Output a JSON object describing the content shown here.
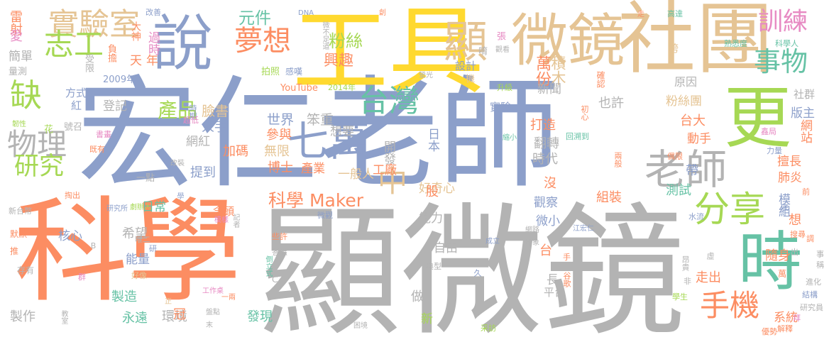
{
  "palette": {
    "blue": "#8c9fca",
    "gray": "#b3b3b3",
    "orange": "#fc8d62",
    "yellow": "#ffd92f",
    "tan": "#e5c494",
    "green": "#a6d854",
    "teal": "#66c2a5",
    "pink": "#e78ac3"
  },
  "words": [
    {
      "text": "宏仁老師",
      "color": "blue"
    },
    {
      "text": "顯微鏡",
      "color": "gray"
    },
    {
      "text": "科學",
      "color": "orange"
    },
    {
      "text": "工具",
      "color": "yellow"
    },
    {
      "text": "社團",
      "color": "tan"
    },
    {
      "text": "更",
      "color": "green"
    },
    {
      "text": "時",
      "color": "teal"
    },
    {
      "text": "說",
      "color": "blue"
    },
    {
      "text": "微鏡",
      "color": "tan"
    },
    {
      "text": "顯",
      "color": "tan"
    },
    {
      "text": "實驗室",
      "color": "tan"
    },
    {
      "text": "志工",
      "color": "green"
    },
    {
      "text": "夢想",
      "color": "orange"
    },
    {
      "text": "七萬",
      "color": "blue"
    },
    {
      "text": "台灣",
      "color": "teal"
    },
    {
      "text": "老師",
      "color": "gray"
    },
    {
      "text": "分享",
      "color": "green"
    },
    {
      "text": "物理",
      "color": "gray"
    },
    {
      "text": "缺",
      "color": "green"
    },
    {
      "text": "研究",
      "color": "green"
    },
    {
      "text": "手機",
      "color": "orange"
    },
    {
      "text": "事物",
      "color": "teal"
    },
    {
      "text": "訓練",
      "color": "pink"
    },
    {
      "text": "中",
      "color": "tan"
    },
    {
      "text": "科學 Maker",
      "color": "orange"
    },
    {
      "text": "萬份",
      "color": "orange"
    },
    {
      "text": "積木",
      "color": "tan"
    },
    {
      "text": "粉絲",
      "color": "green"
    },
    {
      "text": "興趣",
      "color": "orange"
    },
    {
      "text": "元件",
      "color": "teal"
    },
    {
      "text": "雷射",
      "color": "orange"
    },
    {
      "text": "愛",
      "color": "pink"
    },
    {
      "text": "簡單",
      "color": "gray"
    },
    {
      "text": "量測",
      "color": "gray"
    },
    {
      "text": "大神",
      "color": "orange"
    },
    {
      "text": "過時",
      "color": "pink"
    },
    {
      "text": "天",
      "color": "orange"
    },
    {
      "text": "年",
      "color": "orange"
    },
    {
      "text": "負擔",
      "color": "orange"
    },
    {
      "text": "受限",
      "color": "gray"
    },
    {
      "text": "產品",
      "color": "green"
    },
    {
      "text": "臉書",
      "color": "tan"
    },
    {
      "text": "人手",
      "color": "blue"
    },
    {
      "text": "世界",
      "color": "blue"
    },
    {
      "text": "笨重",
      "color": "gray"
    },
    {
      "text": "想要",
      "color": "gray"
    },
    {
      "text": "參與",
      "color": "orange"
    },
    {
      "text": "網紅",
      "color": "gray"
    },
    {
      "text": "加碼",
      "color": "orange"
    },
    {
      "text": "無限",
      "color": "tan"
    },
    {
      "text": "博士",
      "color": "orange"
    },
    {
      "text": "提到",
      "color": "blue"
    },
    {
      "text": "開發",
      "color": "gray"
    },
    {
      "text": "工廠",
      "color": "orange"
    },
    {
      "text": "日本",
      "color": "blue"
    },
    {
      "text": "產業",
      "color": "orange"
    },
    {
      "text": "一般人",
      "color": "tan"
    },
    {
      "text": "好奇心",
      "color": "tan"
    },
    {
      "text": "實驗",
      "color": "blue"
    },
    {
      "text": "打造",
      "color": "orange"
    },
    {
      "text": "翻轉",
      "color": "gray"
    },
    {
      "text": "時代",
      "color": "gray"
    },
    {
      "text": "新聞",
      "color": "gray"
    },
    {
      "text": "也許",
      "color": "gray"
    },
    {
      "text": "粉絲團",
      "color": "tan"
    },
    {
      "text": "台大",
      "color": "orange"
    },
    {
      "text": "網站",
      "color": "orange"
    },
    {
      "text": "動手",
      "color": "orange"
    },
    {
      "text": "擅長",
      "color": "orange"
    },
    {
      "text": "肺炎",
      "color": "orange"
    },
    {
      "text": "版主",
      "color": "blue"
    },
    {
      "text": "社群",
      "color": "gray"
    },
    {
      "text": "原因",
      "color": "gray"
    },
    {
      "text": "測試",
      "color": "teal"
    },
    {
      "text": "帶",
      "color": "blue"
    },
    {
      "text": "沒",
      "color": "orange"
    },
    {
      "text": "組裝",
      "color": "orange"
    },
    {
      "text": "觀察",
      "color": "blue"
    },
    {
      "text": "微小",
      "color": "blue"
    },
    {
      "text": "隨身",
      "color": "orange"
    },
    {
      "text": "走出",
      "color": "orange"
    },
    {
      "text": "模組",
      "color": "blue"
    },
    {
      "text": "想",
      "color": "orange"
    },
    {
      "text": "系統",
      "color": "orange"
    },
    {
      "text": "台",
      "color": "orange"
    },
    {
      "text": "長",
      "color": "gray"
    },
    {
      "text": "平台",
      "color": "gray"
    },
    {
      "text": "自由",
      "color": "gray"
    },
    {
      "text": "能力",
      "color": "gray"
    },
    {
      "text": "股",
      "color": "orange"
    },
    {
      "text": "做",
      "color": "gray"
    },
    {
      "text": "新",
      "color": "green"
    },
    {
      "text": "發現",
      "color": "teal"
    },
    {
      "text": "環境",
      "color": "gray"
    },
    {
      "text": "製造",
      "color": "teal"
    },
    {
      "text": "永遠",
      "color": "teal"
    },
    {
      "text": "能量",
      "color": "blue"
    },
    {
      "text": "希望",
      "color": "gray"
    },
    {
      "text": "日常",
      "color": "teal"
    },
    {
      "text": "核心",
      "color": "blue"
    },
    {
      "text": "方式",
      "color": "blue"
    },
    {
      "text": "紅",
      "color": "blue"
    },
    {
      "text": "登記",
      "color": "gray"
    },
    {
      "text": "號召",
      "color": "gray"
    },
    {
      "text": "花",
      "color": "green"
    },
    {
      "text": "冠",
      "color": "orange"
    },
    {
      "text": "製作",
      "color": "gray"
    },
    {
      "text": "一點",
      "color": "gray"
    },
    {
      "text": "念頭",
      "color": "orange"
    },
    {
      "text": "設計",
      "color": "blue"
    },
    {
      "text": "機",
      "color": "tan"
    },
    {
      "text": "唷",
      "color": "gray"
    },
    {
      "text": "2009年",
      "color": "blue"
    },
    {
      "text": "YouTube",
      "color": "orange"
    },
    {
      "text": "2014年",
      "color": "green"
    },
    {
      "text": "DNA",
      "color": "blue"
    },
    {
      "text": "改善",
      "color": "blue"
    },
    {
      "text": "拍照",
      "color": "green"
    },
    {
      "text": "感嘆",
      "color": "blue"
    },
    {
      "text": "微不足道",
      "color": "gray"
    },
    {
      "text": "創",
      "color": "orange"
    },
    {
      "text": "升級",
      "color": "green"
    },
    {
      "text": "螢光",
      "color": "gray"
    },
    {
      "text": "張",
      "color": "pink"
    },
    {
      "text": "觀看",
      "color": "gray"
    },
    {
      "text": "走",
      "color": "orange"
    },
    {
      "text": "高達",
      "color": "teal"
    },
    {
      "text": "熟悉度",
      "color": "teal"
    },
    {
      "text": "科學人",
      "color": "teal"
    },
    {
      "text": "跨",
      "color": "tan"
    },
    {
      "text": "確認",
      "color": "orange"
    },
    {
      "text": "初心",
      "color": "orange"
    },
    {
      "text": "回溯到",
      "color": "teal"
    },
    {
      "text": "縮小",
      "color": "teal"
    },
    {
      "text": "兩般",
      "color": "orange"
    },
    {
      "text": "力量",
      "color": "blue"
    },
    {
      "text": "鑫局",
      "color": "pink"
    },
    {
      "text": "偶限",
      "color": "orange"
    },
    {
      "text": "網路",
      "color": "gray"
    },
    {
      "text": "印象",
      "color": "gray"
    },
    {
      "text": "江宏仁",
      "color": "blue"
    },
    {
      "text": "成立",
      "color": "blue"
    },
    {
      "text": "時期",
      "color": "blue"
    },
    {
      "text": "超低",
      "color": "pink"
    },
    {
      "text": "韌性",
      "color": "green"
    },
    {
      "text": "書畫",
      "color": "pink"
    },
    {
      "text": "既有",
      "color": "orange"
    },
    {
      "text": "改裝",
      "color": "gray"
    },
    {
      "text": "新台幣",
      "color": "gray"
    },
    {
      "text": "掏出",
      "color": "orange"
    },
    {
      "text": "研究所",
      "color": "blue"
    },
    {
      "text": "劇辦人",
      "color": "green"
    },
    {
      "text": "學",
      "color": "blue"
    },
    {
      "text": "模樣",
      "color": "pink"
    },
    {
      "text": "記者",
      "color": "gray"
    },
    {
      "text": "倒立式",
      "color": "teal"
    },
    {
      "text": "微觀",
      "color": "blue"
    },
    {
      "text": "些許",
      "color": "orange"
    },
    {
      "text": "答應",
      "color": "gray"
    },
    {
      "text": "正",
      "color": "tan"
    },
    {
      "text": "工作桌",
      "color": "pink"
    },
    {
      "text": "一兩",
      "color": "orange"
    },
    {
      "text": "盤點",
      "color": "gray"
    },
    {
      "text": "末",
      "color": "gray"
    },
    {
      "text": "教室",
      "color": "gray"
    },
    {
      "text": "困境",
      "color": "gray"
    },
    {
      "text": "采訪",
      "color": "green"
    },
    {
      "text": "默默",
      "color": "orange"
    },
    {
      "text": "推",
      "color": "orange"
    },
    {
      "text": "存有",
      "color": "gray"
    },
    {
      "text": "群",
      "color": "pink"
    },
    {
      "text": "好像",
      "color": "tan"
    },
    {
      "text": "典型",
      "color": "gray"
    },
    {
      "text": "唯二",
      "color": "gray"
    },
    {
      "text": "研",
      "color": "blue"
    },
    {
      "text": "久",
      "color": "blue"
    },
    {
      "text": "B",
      "color": "gray"
    },
    {
      "text": "C",
      "color": "gray"
    },
    {
      "text": "萬",
      "color": "orange"
    },
    {
      "text": "非",
      "color": "gray"
    },
    {
      "text": "學生",
      "color": "green"
    },
    {
      "text": "谷歌",
      "color": "orange"
    },
    {
      "text": "手",
      "color": "orange"
    },
    {
      "text": "進化",
      "color": "gray"
    },
    {
      "text": "結構",
      "color": "blue"
    },
    {
      "text": "研究員",
      "color": "gray"
    },
    {
      "text": "拜",
      "color": "pink"
    },
    {
      "text": "解釋",
      "color": "orange"
    },
    {
      "text": "優勢",
      "color": "orange"
    },
    {
      "text": "底",
      "color": "blue"
    },
    {
      "text": "前",
      "color": "orange"
    },
    {
      "text": "搜尋",
      "color": "orange"
    },
    {
      "text": "出",
      "color": "gray"
    },
    {
      "text": "調",
      "color": "orange"
    },
    {
      "text": "事",
      "color": "gray"
    },
    {
      "text": "稱",
      "color": "gray"
    },
    {
      "text": "水流",
      "color": "blue"
    },
    {
      "text": "昂貴",
      "color": "gray"
    },
    {
      "text": "虛",
      "color": "gray"
    }
  ]
}
